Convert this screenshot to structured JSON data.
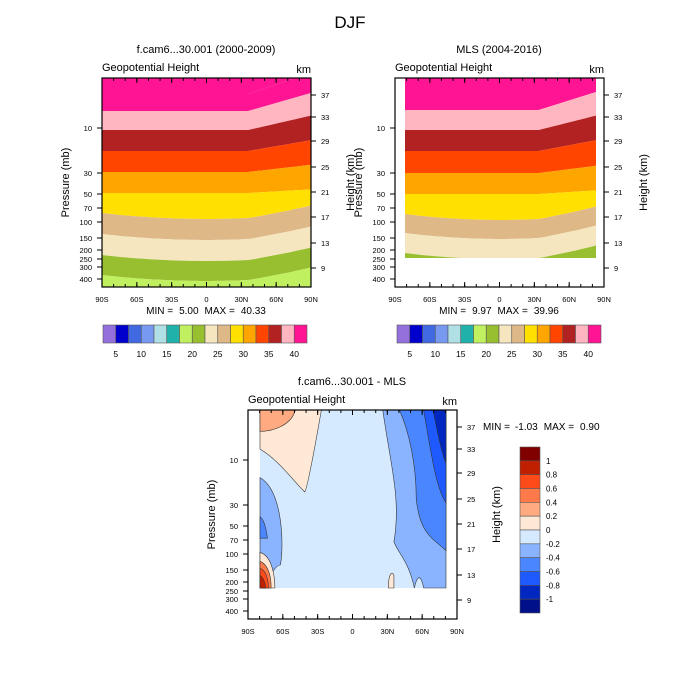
{
  "page_title": "DJF",
  "chart_data": [
    {
      "type": "heatmap",
      "subtype": "filled-contour",
      "title": "f.cam6...30.001 (2000-2009)",
      "left_label": "Geopotential Height",
      "right_label": "km",
      "ylabel": "Pressure (mb)",
      "ylabel_right": "Height (km)",
      "x_ticks": [
        "90S",
        "60S",
        "30S",
        "0",
        "30N",
        "60N",
        "90N"
      ],
      "y_ticks": [
        "10",
        "30",
        "50",
        "70",
        "100",
        "150",
        "200",
        "250",
        "300",
        "400"
      ],
      "y_ticks_right": [
        "37",
        "33",
        "29",
        "25",
        "21",
        "17",
        "13",
        "9"
      ],
      "stats": {
        "min_label": "MIN =",
        "min": "5.00",
        "max_label": "MAX =",
        "max": "40.33"
      },
      "colorbar": {
        "labels": [
          "5",
          "10",
          "15",
          "20",
          "25",
          "30",
          "35",
          "40"
        ],
        "colors": [
          "#9370db",
          "#0000cd",
          "#4169e1",
          "#7799f0",
          "#b0e0e6",
          "#20b2aa",
          "#c0f060",
          "#98bf30",
          "#f5e6c0",
          "#deb887",
          "#ffe000",
          "#ffa500",
          "#ff4500",
          "#b22222",
          "#ffb6c1",
          "#ff1493"
        ]
      },
      "xlim": [
        -90,
        90
      ],
      "lat_extent": [
        -90,
        90
      ],
      "bands_description": "Geopotential height (km) increasing with altitude; contour interval 2.5 km",
      "level_min": 5.0,
      "level_max": 40.33
    },
    {
      "type": "heatmap",
      "subtype": "filled-contour",
      "title": "MLS (2004-2016)",
      "left_label": "Geopotential Height",
      "right_label": "km",
      "ylabel": "Pressure (mb)",
      "ylabel_right": "Height (km)",
      "x_ticks": [
        "90S",
        "60S",
        "30S",
        "0",
        "30N",
        "60N",
        "90N"
      ],
      "y_ticks": [
        "10",
        "30",
        "50",
        "70",
        "100",
        "150",
        "200",
        "250",
        "300",
        "400"
      ],
      "y_ticks_right": [
        "37",
        "33",
        "29",
        "25",
        "21",
        "17",
        "13",
        "9"
      ],
      "stats": {
        "min_label": "MIN =",
        "min": "9.97",
        "max_label": "MAX =",
        "max": "39.96"
      },
      "colorbar": {
        "labels": [
          "5",
          "10",
          "15",
          "20",
          "25",
          "30",
          "35",
          "40"
        ],
        "colors": [
          "#9370db",
          "#0000cd",
          "#4169e1",
          "#7799f0",
          "#b0e0e6",
          "#20b2aa",
          "#c0f060",
          "#98bf30",
          "#f5e6c0",
          "#deb887",
          "#ffe000",
          "#ffa500",
          "#ff4500",
          "#b22222",
          "#ffb6c1",
          "#ff1493"
        ]
      },
      "xlim": [
        -90,
        90
      ],
      "lat_extent": [
        -82,
        82
      ],
      "level_min": 9.97,
      "level_max": 39.96
    },
    {
      "type": "heatmap",
      "subtype": "filled-contour",
      "title": "f.cam6...30.001 - MLS",
      "left_label": "Geopotential Height",
      "right_label": "km",
      "ylabel": "Pressure (mb)",
      "ylabel_right": "Height (km)",
      "x_ticks": [
        "90S",
        "60S",
        "30S",
        "0",
        "30N",
        "60N",
        "90N"
      ],
      "y_ticks": [
        "10",
        "30",
        "50",
        "70",
        "100",
        "150",
        "200",
        "250",
        "300",
        "400"
      ],
      "y_ticks_right": [
        "37",
        "33",
        "29",
        "25",
        "21",
        "17",
        "13",
        "9"
      ],
      "stats": {
        "min_label": "MIN =",
        "min": "-1.03",
        "max_label": "MAX =",
        "max": "0.90"
      },
      "colorbar": {
        "labels": [
          "1",
          "0.8",
          "0.6",
          "0.4",
          "0.2",
          "0",
          "-0.2",
          "-0.4",
          "-0.6",
          "-0.8",
          "-1"
        ],
        "colors": [
          "#800000",
          "#c02000",
          "#ff4a1a",
          "#ff7a4a",
          "#ffaa80",
          "#ffe8d6",
          "#d6eaff",
          "#8ab4ff",
          "#4a86ff",
          "#1e5aff",
          "#0028c0",
          "#00108a"
        ]
      },
      "xlim": [
        -90,
        90
      ],
      "lat_extent": [
        -82,
        82
      ],
      "level_min": -1.03,
      "level_max": 0.9
    }
  ]
}
